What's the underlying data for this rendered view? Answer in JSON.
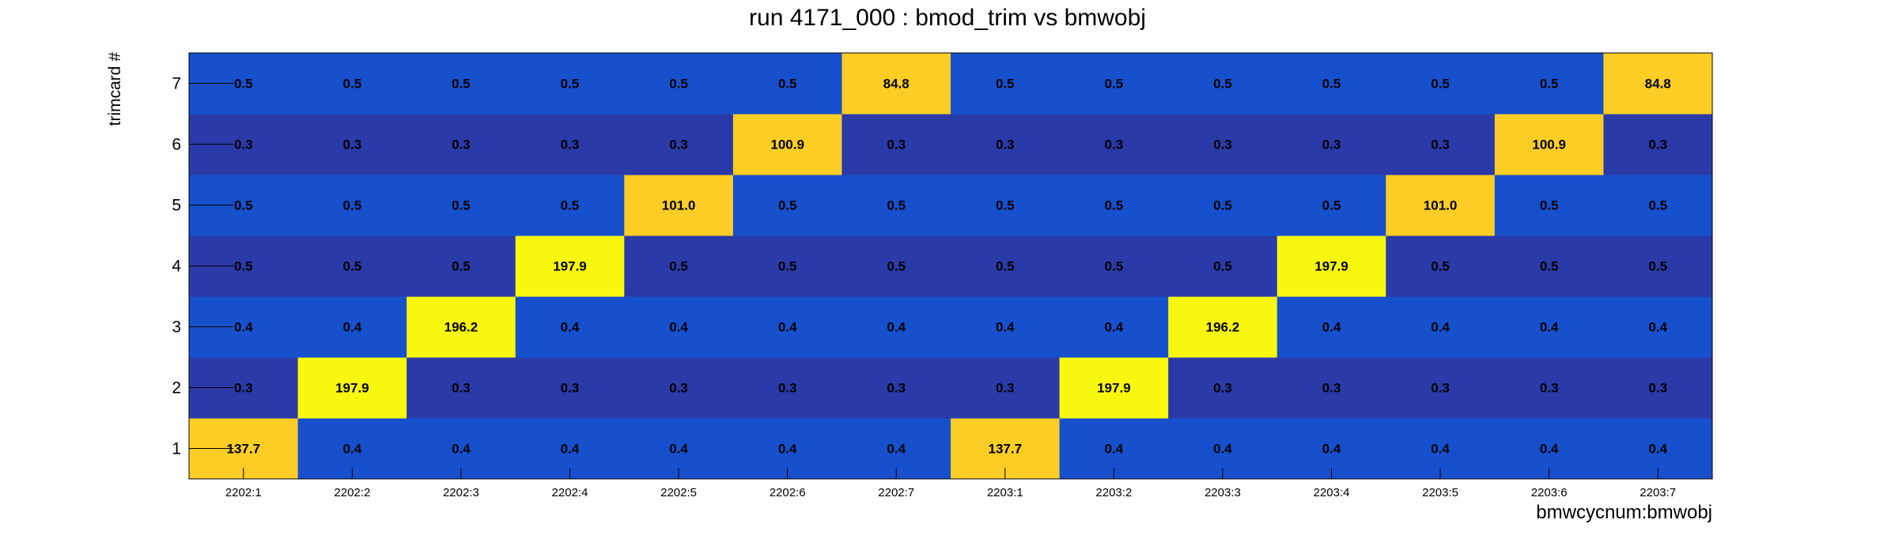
{
  "chart_data": {
    "type": "heatmap",
    "title": "run 4171_000 : bmod_trim vs bmwobj",
    "xlabel": "bmwcycnum:bmwobj",
    "ylabel": "trimcard #",
    "x_categories": [
      "2202:1",
      "2202:2",
      "2202:3",
      "2202:4",
      "2202:5",
      "2202:6",
      "2202:7",
      "2203:1",
      "2203:2",
      "2203:3",
      "2203:4",
      "2203:5",
      "2203:6",
      "2203:7"
    ],
    "y_categories": [
      "1",
      "2",
      "3",
      "4",
      "5",
      "6",
      "7"
    ],
    "values": [
      [
        137.7,
        0.4,
        0.4,
        0.4,
        0.4,
        0.4,
        0.4,
        137.7,
        0.4,
        0.4,
        0.4,
        0.4,
        0.4,
        0.4
      ],
      [
        0.3,
        197.9,
        0.3,
        0.3,
        0.3,
        0.3,
        0.3,
        0.3,
        197.9,
        0.3,
        0.3,
        0.3,
        0.3,
        0.3
      ],
      [
        0.4,
        0.4,
        196.2,
        0.4,
        0.4,
        0.4,
        0.4,
        0.4,
        0.4,
        196.2,
        0.4,
        0.4,
        0.4,
        0.4
      ],
      [
        0.5,
        0.5,
        0.5,
        197.9,
        0.5,
        0.5,
        0.5,
        0.5,
        0.5,
        0.5,
        197.9,
        0.5,
        0.5,
        0.5
      ],
      [
        0.5,
        0.5,
        0.5,
        0.5,
        101.0,
        0.5,
        0.5,
        0.5,
        0.5,
        0.5,
        0.5,
        101.0,
        0.5,
        0.5
      ],
      [
        0.3,
        0.3,
        0.3,
        0.3,
        0.3,
        100.9,
        0.3,
        0.3,
        0.3,
        0.3,
        0.3,
        0.3,
        100.9,
        0.3
      ],
      [
        0.5,
        0.5,
        0.5,
        0.5,
        0.5,
        0.5,
        84.8,
        0.5,
        0.5,
        0.5,
        0.5,
        0.5,
        0.5,
        84.8
      ]
    ],
    "colors": {
      "low_row_even": "#2a3aa8",
      "low_row_odd": "#1750cd",
      "mid": "#fbcd25",
      "high": "#f8f80e"
    }
  }
}
